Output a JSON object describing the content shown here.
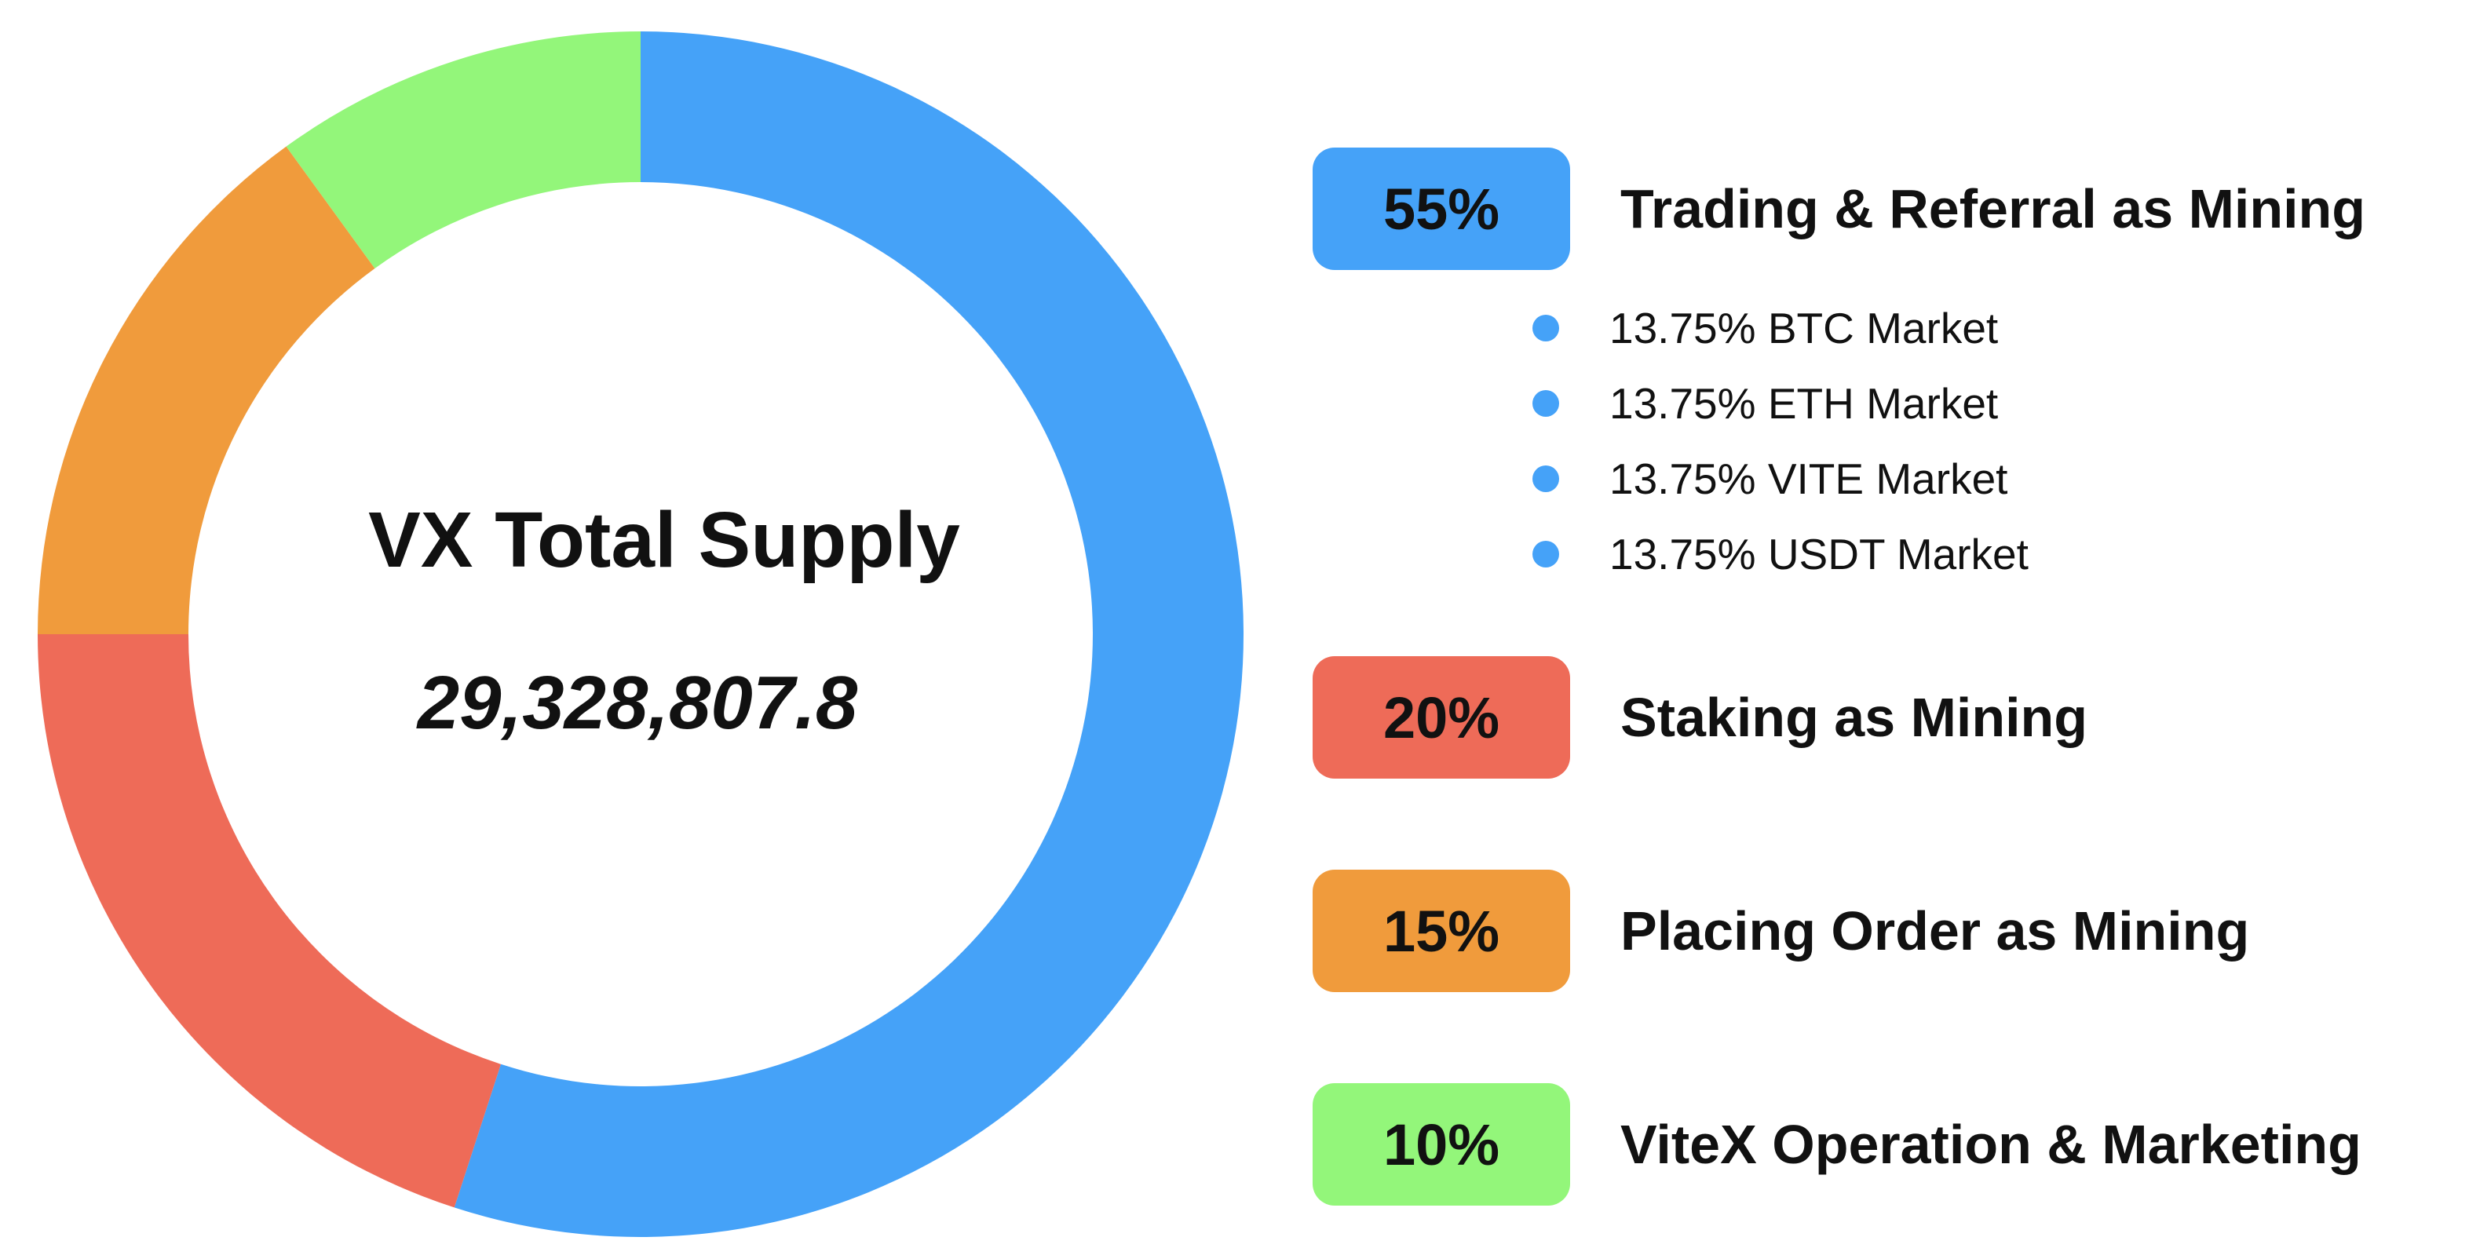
{
  "chart_data": {
    "type": "pie",
    "title": "VX Total Supply",
    "center_value": "29,328,807.8",
    "slices": [
      {
        "value": 55,
        "percent_label": "55%",
        "label": "Trading & Referral as Mining",
        "color": "#45A2F8",
        "sub_items": [
          {
            "label": "13.75% BTC Market"
          },
          {
            "label": "13.75% ETH Market"
          },
          {
            "label": "13.75% VITE Market"
          },
          {
            "label": "13.75% USDT Market"
          }
        ]
      },
      {
        "value": 20,
        "percent_label": "20%",
        "label": "Staking as Mining",
        "color": "#EE6B58"
      },
      {
        "value": 15,
        "percent_label": "15%",
        "label": "Placing Order as Mining",
        "color": "#F09B3C"
      },
      {
        "value": 10,
        "percent_label": "10%",
        "label": "ViteX Operation & Marketing",
        "color": "#93F67A"
      }
    ],
    "start_angle": "12 o'clock",
    "direction": "clockwise",
    "legend_position": "right"
  }
}
